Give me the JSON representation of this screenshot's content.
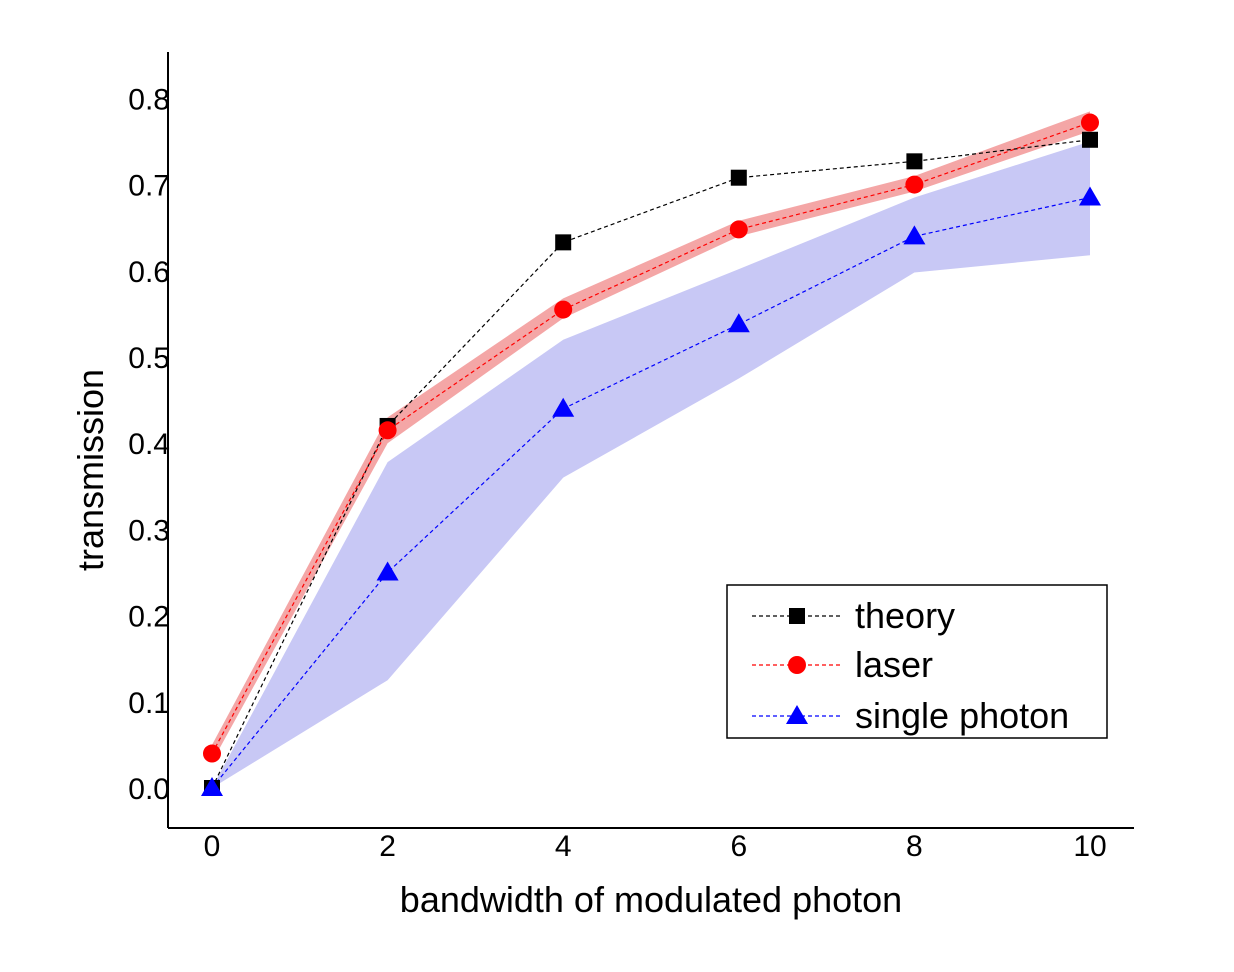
{
  "chart_data": {
    "type": "line",
    "title": "",
    "xlabel": "bandwidth of modulated photon",
    "ylabel": "transmission",
    "xlim": [
      -0.5,
      10.5
    ],
    "ylim": [
      -0.05,
      0.85
    ],
    "xticks": [
      0,
      2,
      4,
      6,
      8,
      10
    ],
    "xtick_labels": [
      "0",
      "2",
      "4",
      "6",
      "8",
      "10"
    ],
    "yticks": [
      0.0,
      0.1,
      0.2,
      0.3,
      0.4,
      0.5,
      0.6,
      0.7,
      0.8
    ],
    "ytick_labels": [
      "0.0",
      "0.1",
      "0.2",
      "0.3",
      "0.4",
      "0.5",
      "0.6",
      "0.7",
      "0.8"
    ],
    "grid": false,
    "legend_position": "bottom-right",
    "x": [
      0,
      2,
      4,
      6,
      8,
      10
    ],
    "series": [
      {
        "name": "theory",
        "marker": "square",
        "color": "#000000",
        "values": [
          0.0,
          0.42,
          0.633,
          0.708,
          0.727,
          0.752
        ]
      },
      {
        "name": "laser",
        "marker": "circle",
        "color": "#ff0000",
        "band_color": "#f4a6a6",
        "values": [
          0.04,
          0.415,
          0.555,
          0.648,
          0.7,
          0.772
        ],
        "band_lower": [
          0.03,
          0.4,
          0.545,
          0.64,
          0.692,
          0.762
        ],
        "band_upper": [
          0.05,
          0.43,
          0.568,
          0.658,
          0.71,
          0.785
        ]
      },
      {
        "name": "single photon",
        "marker": "triangle",
        "color": "#0000ff",
        "band_color": "#c8c8f5",
        "values": [
          0.0,
          0.25,
          0.44,
          0.538,
          0.64,
          0.685
        ],
        "band_lower": [
          0.0,
          0.125,
          0.36,
          0.475,
          0.598,
          0.618
        ],
        "band_upper": [
          0.0,
          0.378,
          0.52,
          0.602,
          0.685,
          0.75
        ]
      }
    ]
  }
}
